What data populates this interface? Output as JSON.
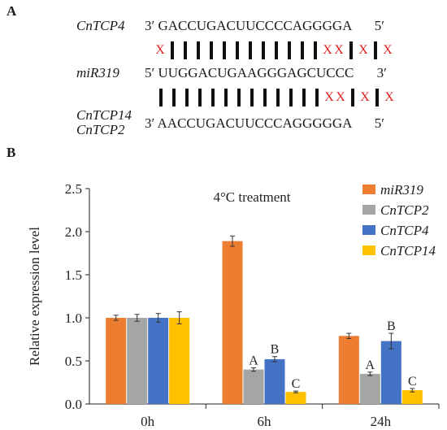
{
  "panel_a": {
    "label": "A",
    "rows": [
      {
        "gene": "CnTCP4",
        "prime_left": "3′",
        "sequence": "GACCUGACUUCCCCAGGGGA",
        "prime_right": "5′"
      },
      {
        "gene": "miR319",
        "prime_left": "5′",
        "sequence": "UUGGACUGAAGGGAGCUCCC",
        "prime_right": "3′"
      },
      {
        "gene_line1": "CnTCP14",
        "gene_line2": "CnTCP2",
        "prime_left": "3′",
        "sequence": "AACCUGACUUCCCAGGGGGA",
        "prime_right": "5′"
      }
    ],
    "pairing_top": [
      "X",
      "|",
      "|",
      "|",
      "|",
      "|",
      "|",
      "|",
      "|",
      "|",
      "|",
      "|",
      "|",
      "X",
      "X",
      "|",
      "X",
      "|",
      "X"
    ],
    "pairing_bottom": [
      "|",
      "|",
      "|",
      "|",
      "|",
      "|",
      "|",
      "|",
      "|",
      "|",
      "|",
      "|",
      "|",
      "X",
      "X",
      "|",
      "X",
      "|",
      "X"
    ],
    "mismatch_color": "#e02020"
  },
  "panel_b": {
    "label": "B"
  },
  "chart_data": {
    "type": "bar",
    "title": "4°C  treatment",
    "ylabel": "Relative expression level",
    "xlabel": "",
    "categories": [
      "0h",
      "6h",
      "24h"
    ],
    "ylim": [
      0,
      2.5
    ],
    "yticks": [
      "0.0",
      "0.5",
      "1.0",
      "1.5",
      "2.0",
      "2.5"
    ],
    "grid": false,
    "legend": "top-right",
    "series": [
      {
        "name": "miR319",
        "color": "#ED7D31",
        "values": [
          1.0,
          1.89,
          0.79
        ],
        "errors": [
          0.03,
          0.06,
          0.03
        ],
        "labels": [
          "",
          "",
          ""
        ]
      },
      {
        "name": "CnTCP2",
        "color": "#A5A5A5",
        "values": [
          1.0,
          0.4,
          0.35
        ],
        "errors": [
          0.04,
          0.02,
          0.02
        ],
        "labels": [
          "",
          "A",
          "A"
        ]
      },
      {
        "name": "CnTCP4",
        "color": "#4472C4",
        "values": [
          1.0,
          0.52,
          0.73
        ],
        "errors": [
          0.05,
          0.03,
          0.09
        ],
        "labels": [
          "",
          "B",
          "B"
        ]
      },
      {
        "name": "CnTCP14",
        "color": "#FFC000",
        "values": [
          1.0,
          0.14,
          0.16
        ],
        "errors": [
          0.07,
          0.01,
          0.02
        ],
        "labels": [
          "",
          "C",
          "C"
        ]
      }
    ]
  }
}
